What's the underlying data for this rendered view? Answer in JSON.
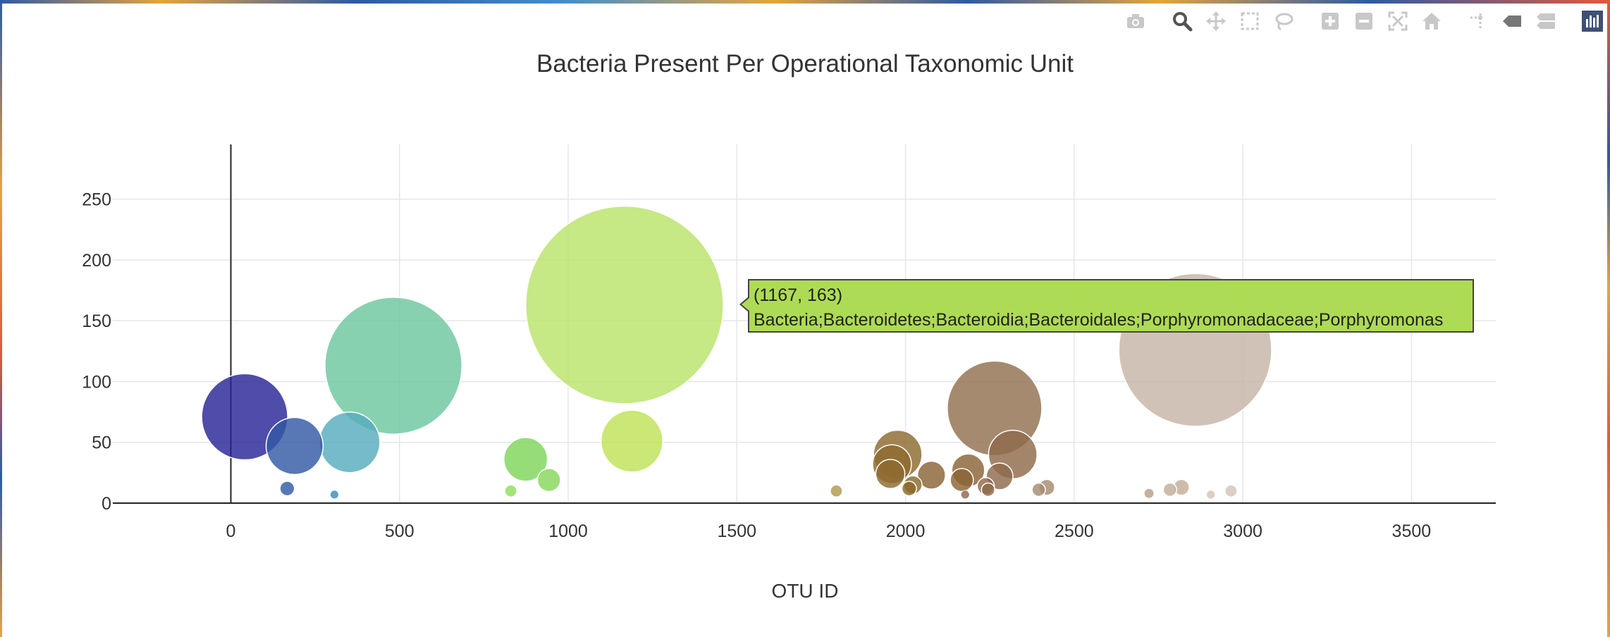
{
  "modebar": {
    "buttons": [
      {
        "icon": "camera-icon",
        "label": "Download plot as a png"
      },
      {
        "icon": "zoom-icon",
        "label": "Zoom"
      },
      {
        "icon": "pan-icon",
        "label": "Pan"
      },
      {
        "icon": "box-select-icon",
        "label": "Box Select"
      },
      {
        "icon": "lasso-select-icon",
        "label": "Lasso Select"
      },
      {
        "icon": "zoom-in-icon",
        "label": "Zoom in"
      },
      {
        "icon": "zoom-out-icon",
        "label": "Zoom out"
      },
      {
        "icon": "autoscale-icon",
        "label": "Autoscale"
      },
      {
        "icon": "reset-axes-icon",
        "label": "Reset axes"
      },
      {
        "icon": "spike-lines-icon",
        "label": "Toggle Spike Lines"
      },
      {
        "icon": "hover-closest-icon",
        "label": "Show closest data on hover"
      },
      {
        "icon": "hover-compare-icon",
        "label": "Compare data on hover"
      },
      {
        "icon": "plotly-logo-icon",
        "label": "Produced with Plotly"
      }
    ],
    "active": "zoom-icon"
  },
  "chart_data": {
    "type": "scatter",
    "variant": "bubble",
    "title": "Bacteria Present Per Operational Taxonomic Unit",
    "xlabel": "OTU ID",
    "ylabel": "",
    "xlim": [
      -350,
      3750
    ],
    "ylim": [
      0,
      295
    ],
    "xticks": [
      0,
      500,
      1000,
      1500,
      2000,
      2500,
      3000,
      3500
    ],
    "yticks": [
      0,
      50,
      100,
      150,
      200,
      250
    ],
    "grid": true,
    "legend": "none",
    "points": [
      {
        "x": 41,
        "y": 71,
        "color": "#2a2596"
      },
      {
        "x": 189,
        "y": 47,
        "color": "#3359a5"
      },
      {
        "x": 167,
        "y": 12,
        "color": "#3359a5"
      },
      {
        "x": 352,
        "y": 50,
        "color": "#57acbd"
      },
      {
        "x": 307,
        "y": 7,
        "color": "#3c8cc0"
      },
      {
        "x": 482,
        "y": 113,
        "color": "#6cc7a0"
      },
      {
        "x": 874,
        "y": 36,
        "color": "#7fd65a"
      },
      {
        "x": 943,
        "y": 19,
        "color": "#86d75a"
      },
      {
        "x": 830,
        "y": 10,
        "color": "#90dd58"
      },
      {
        "x": 1167,
        "y": 163,
        "color": "#bae36a"
      },
      {
        "x": 1189,
        "y": 51,
        "color": "#bfe257"
      },
      {
        "x": 1795,
        "y": 10,
        "color": "#b09a50"
      },
      {
        "x": 1977,
        "y": 40,
        "color": "#8e6a30"
      },
      {
        "x": 1960,
        "y": 32,
        "color": "#8e6a30"
      },
      {
        "x": 1955,
        "y": 24,
        "color": "#8e6a30"
      },
      {
        "x": 2011,
        "y": 12,
        "color": "#8a6a2a"
      },
      {
        "x": 2022,
        "y": 15,
        "color": "#8a6a30"
      },
      {
        "x": 2077,
        "y": 23,
        "color": "#8a6436"
      },
      {
        "x": 2186,
        "y": 27,
        "color": "#8a6436"
      },
      {
        "x": 2167,
        "y": 19,
        "color": "#8a6436"
      },
      {
        "x": 2264,
        "y": 78,
        "color": "#93704f"
      },
      {
        "x": 2318,
        "y": 40,
        "color": "#8e6a4a"
      },
      {
        "x": 2279,
        "y": 22,
        "color": "#8e6a4a"
      },
      {
        "x": 2238,
        "y": 14,
        "color": "#8e6a4a"
      },
      {
        "x": 2245,
        "y": 11,
        "color": "#8e6a4a"
      },
      {
        "x": 2177,
        "y": 7,
        "color": "#8e6a4a"
      },
      {
        "x": 2395,
        "y": 11,
        "color": "#a68b72"
      },
      {
        "x": 2419,
        "y": 13,
        "color": "#a68b72"
      },
      {
        "x": 2859,
        "y": 126,
        "color": "#c6b5a6"
      },
      {
        "x": 2818,
        "y": 13,
        "color": "#c2ad9a"
      },
      {
        "x": 2784,
        "y": 11,
        "color": "#c2ad9a"
      },
      {
        "x": 2722,
        "y": 8,
        "color": "#b8a08a"
      },
      {
        "x": 2965,
        "y": 10,
        "color": "#d2c3b8"
      },
      {
        "x": 2905,
        "y": 7,
        "color": "#d2c3b8"
      }
    ],
    "hover": {
      "x": 1167,
      "y": 163,
      "coords_label": "(1167, 163)",
      "text": "Bacteria;Bacteroidetes;Bacteroidia;Bacteroidales;Porphyromonadaceae;Porphyromonas",
      "color": "#aedb55"
    }
  }
}
